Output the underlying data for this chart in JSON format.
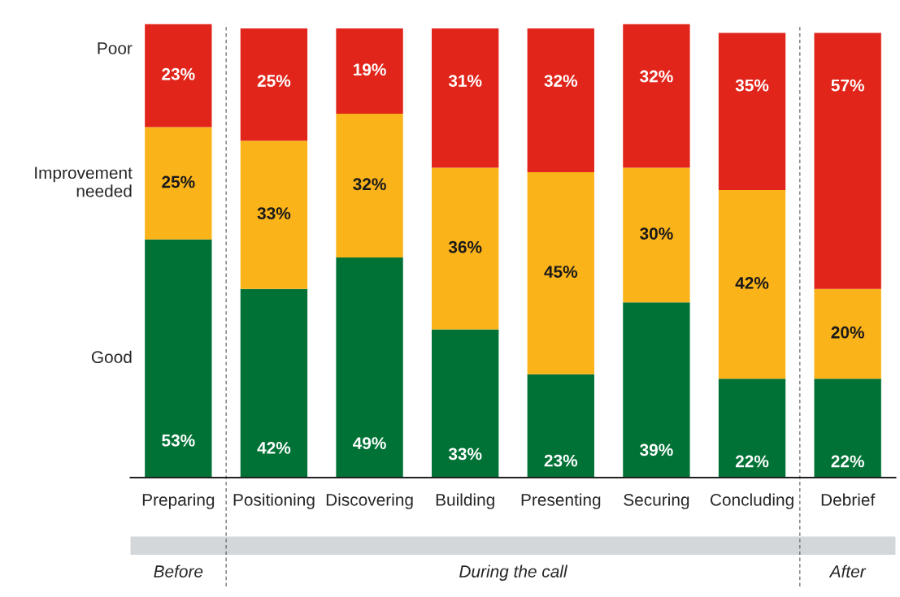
{
  "chart_data": {
    "type": "bar",
    "stacked": true,
    "legend": false,
    "grid": false,
    "categories": [
      "Preparing",
      "Positioning",
      "Discovering",
      "Building",
      "Presenting",
      "Securing",
      "Concluding",
      "Debrief"
    ],
    "series": [
      {
        "name": "Good",
        "color": "#007236",
        "values": [
          53,
          42,
          49,
          33,
          23,
          39,
          22,
          22
        ],
        "value_labels": [
          "53%",
          "42%",
          "49%",
          "33%",
          "23%",
          "39%",
          "22%",
          "22%"
        ]
      },
      {
        "name": "Improvement needed",
        "color": "#fbb31a",
        "values": [
          25,
          33,
          32,
          36,
          45,
          30,
          42,
          20
        ],
        "value_labels": [
          "25%",
          "33%",
          "32%",
          "36%",
          "45%",
          "30%",
          "42%",
          "20%"
        ]
      },
      {
        "name": "Poor",
        "color": "#e1251b",
        "values": [
          23,
          25,
          19,
          31,
          32,
          32,
          35,
          57
        ],
        "value_labels": [
          "23%",
          "25%",
          "19%",
          "31%",
          "32%",
          "32%",
          "35%",
          "57%"
        ]
      }
    ],
    "annotations": [
      "Before",
      "During the call",
      "After"
    ]
  }
}
